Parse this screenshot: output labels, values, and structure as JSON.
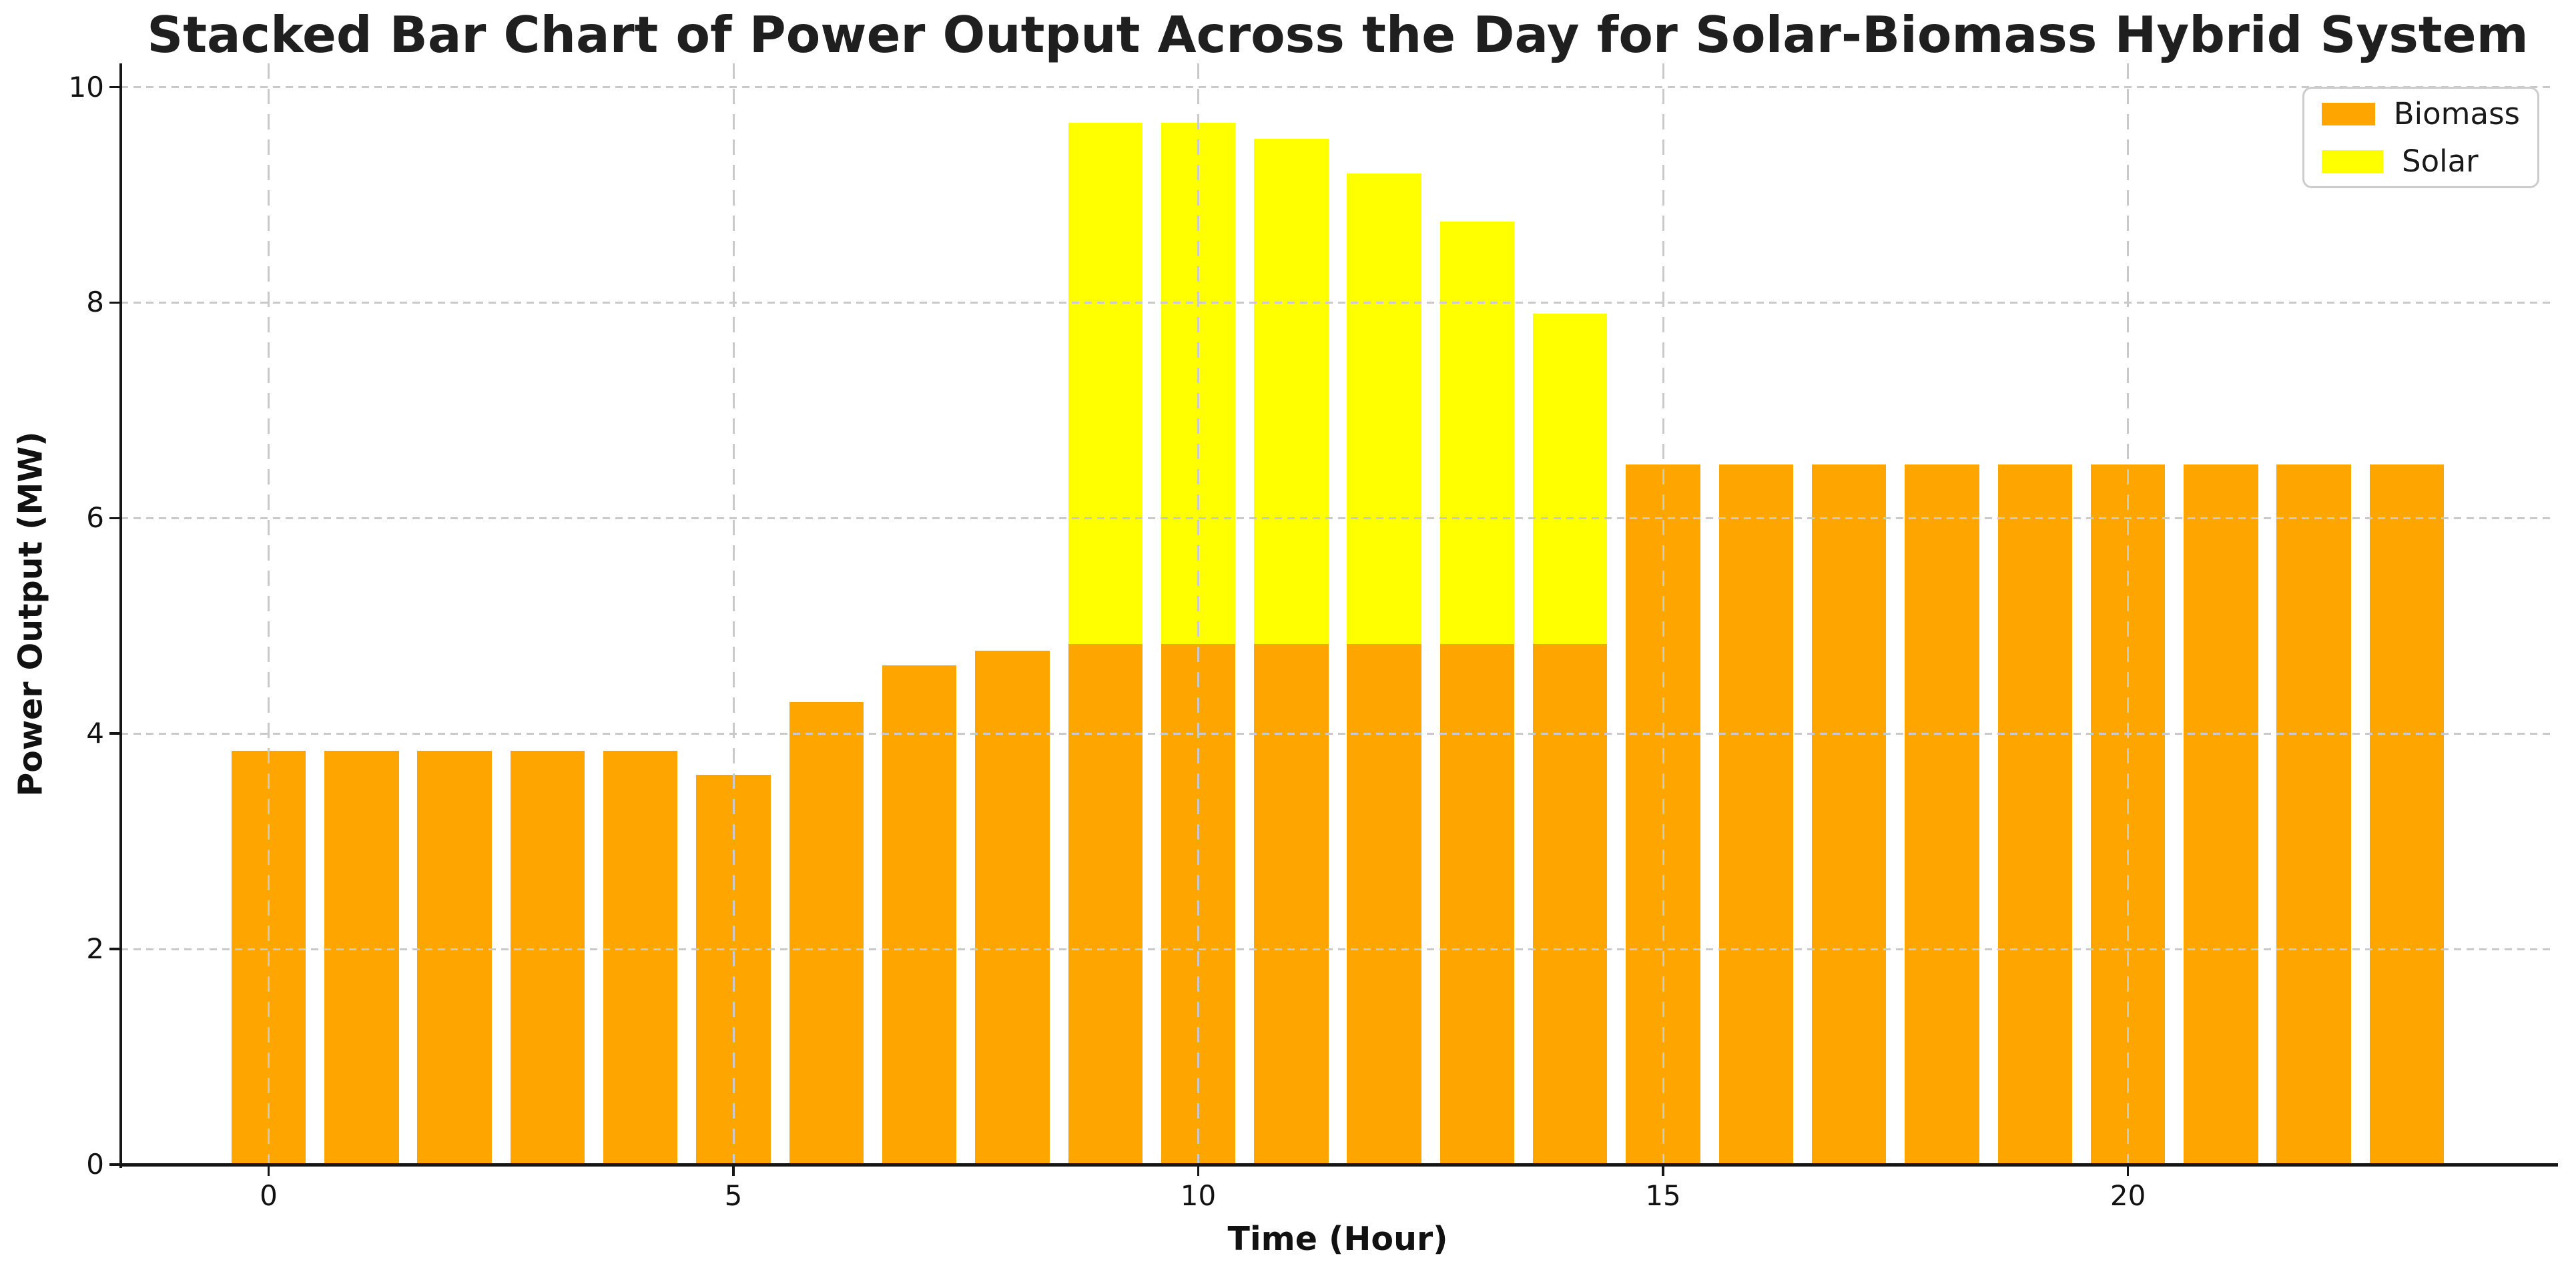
{
  "chart_data": {
    "type": "bar",
    "stacked": true,
    "title": "Stacked Bar Chart of Power Output Across the Day for Solar-Biomass Hybrid System",
    "xlabel": "Time (Hour)",
    "ylabel": "Power Output (MW)",
    "categories": [
      0,
      1,
      2,
      3,
      4,
      5,
      6,
      7,
      8,
      9,
      10,
      11,
      12,
      13,
      14,
      15,
      16,
      17,
      18,
      19,
      20,
      21,
      22,
      23
    ],
    "series": [
      {
        "name": "Biomass",
        "color": "#FFA500",
        "values": [
          3.84,
          3.84,
          3.84,
          3.84,
          3.84,
          3.62,
          4.29,
          4.63,
          4.77,
          4.83,
          4.83,
          4.83,
          4.83,
          4.83,
          4.83,
          6.5,
          6.5,
          6.5,
          6.5,
          6.5,
          6.5,
          6.5,
          6.5,
          6.5
        ]
      },
      {
        "name": "Solar",
        "color": "#FFFF00",
        "values": [
          0,
          0,
          0,
          0,
          0,
          0,
          0,
          0,
          0,
          4.84,
          4.84,
          4.69,
          4.37,
          3.92,
          3.07,
          0,
          0,
          0,
          0,
          0,
          0,
          0,
          0,
          0
        ]
      }
    ],
    "stack_totals": [
      3.84,
      3.84,
      3.84,
      3.84,
      3.84,
      3.62,
      4.29,
      4.63,
      4.77,
      9.67,
      9.67,
      9.52,
      9.2,
      8.75,
      7.9,
      6.5,
      6.5,
      6.5,
      6.5,
      6.5,
      6.5,
      6.5,
      6.5,
      6.5
    ],
    "xticks": [
      0,
      5,
      10,
      15,
      20
    ],
    "yticks": [
      0,
      2,
      4,
      6,
      8,
      10
    ],
    "xlim": [
      -1.59,
      24.59
    ],
    "ylim": [
      0,
      10.22
    ],
    "bar_width": 0.8,
    "grid": true,
    "grid_style": "dashed",
    "legend_position": "upper right",
    "legend_entries": [
      "Biomass",
      "Solar"
    ],
    "grid_color": "#c9c9c9",
    "spine_color": "#151515"
  }
}
